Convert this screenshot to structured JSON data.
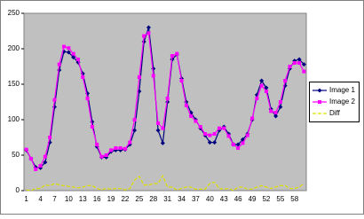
{
  "chart_data": {
    "type": "line",
    "categories": [
      "1",
      null,
      null,
      "4",
      null,
      null,
      "7",
      null,
      null,
      "10",
      null,
      null,
      "13",
      null,
      null,
      "16",
      null,
      null,
      "19",
      null,
      null,
      "22",
      null,
      null,
      "25",
      null,
      null,
      "28",
      null,
      null,
      "31",
      null,
      null,
      "34",
      null,
      null,
      "37",
      null,
      null,
      "40",
      null,
      null,
      "43",
      null,
      null,
      "46",
      null,
      null,
      "49",
      null,
      null,
      "52",
      null,
      null,
      "55",
      null,
      null,
      "58",
      null,
      null
    ],
    "series": [
      {
        "name": "Image 1",
        "color": "#000080",
        "marker": "diamond",
        "values": [
          57,
          45,
          33,
          32,
          40,
          68,
          118,
          170,
          196,
          195,
          188,
          181,
          165,
          137,
          97,
          62,
          47,
          47,
          55,
          57,
          57,
          58,
          65,
          85,
          140,
          210,
          230,
          172,
          85,
          67,
          125,
          185,
          192,
          158,
          125,
          110,
          100,
          88,
          78,
          68,
          68,
          85,
          90,
          80,
          65,
          65,
          72,
          80,
          100,
          135,
          155,
          145,
          115,
          105,
          118,
          148,
          172,
          183,
          185,
          178
        ]
      },
      {
        "name": "Image 2",
        "color": "#ff00ff",
        "marker": "square",
        "values": [
          58,
          45,
          30,
          35,
          48,
          75,
          128,
          178,
          203,
          201,
          193,
          185,
          160,
          130,
          90,
          65,
          48,
          50,
          57,
          60,
          60,
          59,
          68,
          100,
          160,
          218,
          222,
          162,
          95,
          88,
          130,
          190,
          193,
          155,
          120,
          105,
          98,
          90,
          80,
          78,
          80,
          88,
          88,
          77,
          65,
          60,
          67,
          78,
          102,
          130,
          148,
          140,
          112,
          110,
          125,
          155,
          175,
          180,
          180,
          168
        ]
      },
      {
        "name": "Diff",
        "color": "#e0e000",
        "marker": "none",
        "values": [
          1,
          0,
          3,
          3,
          8,
          7,
          10,
          8,
          7,
          6,
          5,
          4,
          5,
          7,
          7,
          3,
          1,
          3,
          2,
          3,
          3,
          1,
          3,
          15,
          20,
          8,
          8,
          10,
          10,
          21,
          5,
          5,
          1,
          3,
          5,
          5,
          2,
          2,
          2,
          10,
          12,
          3,
          2,
          3,
          0,
          5,
          5,
          2,
          2,
          5,
          7,
          5,
          3,
          5,
          7,
          7,
          3,
          3,
          5,
          10
        ]
      }
    ],
    "ylim": [
      0,
      250
    ],
    "yticks": [
      0,
      50,
      100,
      150,
      200,
      250
    ],
    "grid": false,
    "legend": "right"
  }
}
